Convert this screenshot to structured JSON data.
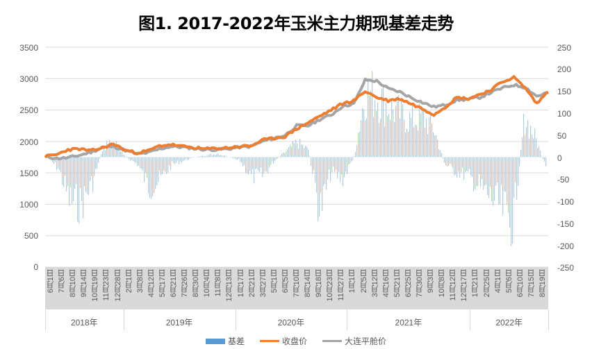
{
  "chart_data": {
    "type": "bar+line",
    "title": "图1. 2017-2022年玉米主力期现基差走势",
    "xlabel": "",
    "ylabel_left": "",
    "ylabel_right": "",
    "left_axis": {
      "ticks": [
        0,
        500,
        1000,
        1500,
        2000,
        2500,
        3000,
        3500
      ],
      "ylim": [
        0,
        3500
      ]
    },
    "right_axis": {
      "ticks": [
        -250,
        -200,
        -150,
        -100,
        -50,
        0,
        50,
        100,
        150,
        200,
        250
      ],
      "ylim": [
        -250,
        250
      ]
    },
    "grid": true,
    "legend_position": "bottom",
    "x_tick_labels": [
      "6月1日",
      "7月6日",
      "8月10日",
      "9月14日",
      "10月19日",
      "11月23日",
      "12月28日",
      "2月1日",
      "3月8日",
      "4月12日",
      "5月17日",
      "6月21日",
      "7月26日",
      "8月30日",
      "10月4日",
      "11月8日",
      "12月13日",
      "1月17日",
      "2月21日",
      "3月27日",
      "5月1日",
      "6月5日",
      "7月10日",
      "8月14日",
      "9月18日",
      "10月23日",
      "11月27日",
      "1月1日",
      "2月5日",
      "3月12日",
      "4月16日",
      "5月21日",
      "6月25日",
      "7月30日",
      "9月3日",
      "10月8日",
      "11月12日",
      "12月17日",
      "1月21日",
      "2月25日",
      "4月1日",
      "5月6日",
      "6月10日",
      "7月15日",
      "8月19日"
    ],
    "x_year_groups": [
      {
        "label": "2018年",
        "start": 0,
        "end": 7
      },
      {
        "label": "2019年",
        "start": 7,
        "end": 17
      },
      {
        "label": "2020年",
        "start": 17,
        "end": 27
      },
      {
        "label": "2021年",
        "start": 27,
        "end": 38
      },
      {
        "label": "2022年",
        "start": 38,
        "end": 45
      }
    ],
    "series": [
      {
        "name": "基差",
        "type": "bar",
        "axis": "right",
        "color": "#5b9bd5",
        "note": "approximate basis envelope sampled at each tick",
        "values": [
          0,
          -30,
          -120,
          -130,
          -70,
          30,
          40,
          0,
          -20,
          -85,
          -60,
          -20,
          -10,
          0,
          5,
          10,
          0,
          -10,
          -55,
          -50,
          -10,
          15,
          40,
          20,
          -150,
          -40,
          -60,
          0,
          180,
          170,
          140,
          120,
          100,
          110,
          80,
          -20,
          -40,
          -50,
          -80,
          -110,
          -140,
          -180,
          110,
          50,
          -40
        ]
      },
      {
        "name": "收盘价",
        "type": "line",
        "axis": "left",
        "color": "#ed7d31",
        "values": [
          1760,
          1790,
          1870,
          1880,
          1850,
          1900,
          1960,
          1860,
          1820,
          1850,
          1930,
          1950,
          1920,
          1900,
          1880,
          1890,
          1900,
          1920,
          1930,
          2020,
          2050,
          2080,
          2200,
          2300,
          2400,
          2500,
          2600,
          2650,
          2800,
          2700,
          2650,
          2680,
          2600,
          2520,
          2430,
          2550,
          2700,
          2680,
          2750,
          2820,
          2950,
          3020,
          2850,
          2600,
          2800
        ]
      },
      {
        "name": "大连平舱价",
        "type": "line",
        "axis": "left",
        "color": "#a5a5a5",
        "values": [
          1760,
          1730,
          1740,
          1780,
          1830,
          1900,
          1920,
          1860,
          1800,
          1820,
          1880,
          1920,
          1910,
          1890,
          1870,
          1870,
          1880,
          1910,
          1920,
          2000,
          2050,
          2100,
          2250,
          2250,
          2350,
          2420,
          2560,
          2600,
          2980,
          2960,
          2840,
          2790,
          2700,
          2620,
          2550,
          2580,
          2660,
          2670,
          2700,
          2780,
          2850,
          2900,
          2860,
          2720,
          2780
        ]
      }
    ]
  },
  "title": "图1. 2017-2022年玉米主力期现基差走势",
  "left_ticks": [
    "3500",
    "3000",
    "2500",
    "2000",
    "1500",
    "1000",
    "500",
    "0"
  ],
  "right_ticks": [
    "250",
    "200",
    "150",
    "100",
    "50",
    "0",
    "-50",
    "-100",
    "-150",
    "-200",
    "-250"
  ],
  "legend": {
    "basis": "基差",
    "close": "收盘价",
    "dalian": "大连平舱价"
  },
  "years": [
    "2018年",
    "2019年",
    "2020年",
    "2021年",
    "2022年"
  ],
  "colors": {
    "basis": "#5b9bd5",
    "close": "#ed7d31",
    "dalian": "#a5a5a5",
    "grid": "#d9d9d9"
  }
}
